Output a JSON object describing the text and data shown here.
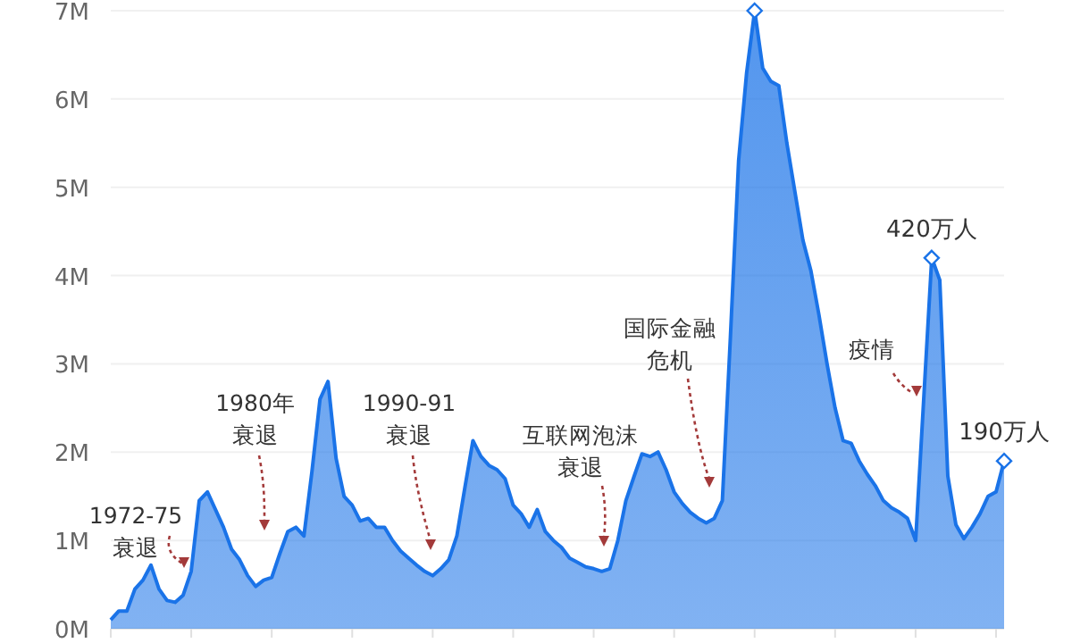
{
  "chart_data": {
    "type": "area",
    "categories": [
      null,
      null,
      null,
      null,
      null,
      null,
      null,
      null,
      null,
      null,
      null,
      null,
      null,
      null,
      null,
      null,
      null,
      null,
      null,
      null,
      null,
      null,
      null,
      null,
      null,
      null,
      null,
      null,
      null,
      null,
      null,
      null,
      null,
      null,
      null,
      null,
      null,
      null,
      null,
      null,
      null,
      null,
      null,
      null,
      null,
      null,
      null,
      null,
      null,
      null,
      null,
      null,
      null,
      null,
      null,
      null,
      null,
      null,
      null,
      null,
      null,
      null,
      null,
      null,
      null,
      null,
      null,
      null,
      null,
      null,
      null,
      null,
      null,
      null,
      null,
      null,
      null,
      null,
      null,
      null,
      null,
      null,
      null,
      null,
      null,
      null,
      null,
      null,
      null,
      null,
      null,
      null,
      null,
      null,
      null,
      null,
      null,
      null,
      null,
      null,
      null,
      null,
      null,
      null,
      null,
      null,
      null,
      null,
      null,
      null,
      null,
      null
    ],
    "series": [
      {
        "type": "area",
        "color": "#1a73e8",
        "values": [
          0.1,
          0.2,
          0.2,
          0.45,
          0.55,
          0.72,
          0.45,
          0.32,
          0.3,
          0.38,
          0.65,
          1.45,
          1.55,
          1.35,
          1.15,
          0.9,
          0.78,
          0.6,
          0.48,
          0.55,
          0.58,
          0.85,
          1.1,
          1.15,
          1.05,
          1.78,
          2.6,
          2.8,
          1.93,
          1.5,
          1.4,
          1.22,
          1.25,
          1.15,
          1.15,
          1.0,
          0.88,
          0.8,
          0.72,
          0.65,
          0.6,
          0.68,
          0.78,
          1.05,
          1.6,
          2.13,
          1.95,
          1.85,
          1.8,
          1.7,
          1.4,
          1.3,
          1.15,
          1.35,
          1.1,
          1.0,
          0.92,
          0.8,
          0.75,
          0.7,
          0.68,
          0.65,
          0.68,
          1.0,
          1.45,
          1.72,
          1.98,
          1.95,
          2.0,
          1.8,
          1.55,
          1.42,
          1.32,
          1.25,
          1.2,
          1.25,
          1.45,
          3.3,
          5.3,
          6.3,
          7.0,
          6.35,
          6.2,
          6.15,
          5.5,
          4.95,
          4.4,
          4.05,
          3.55,
          3.0,
          2.5,
          2.13,
          2.1,
          1.9,
          1.75,
          1.62,
          1.45,
          1.37,
          1.32,
          1.25,
          1.0,
          2.6,
          4.2,
          3.95,
          1.73,
          1.18,
          1.02,
          1.15,
          1.3,
          1.5,
          1.55,
          1.9
        ]
      },
      {
        "type": "scatter",
        "marker": "diamond",
        "color": "#1a73e8",
        "values": [
          null,
          null,
          null,
          null,
          null,
          null,
          null,
          null,
          null,
          null,
          null,
          null,
          null,
          null,
          null,
          null,
          null,
          null,
          null,
          null,
          null,
          null,
          null,
          null,
          null,
          null,
          null,
          null,
          null,
          null,
          null,
          null,
          null,
          null,
          null,
          null,
          null,
          null,
          null,
          null,
          null,
          null,
          null,
          null,
          null,
          null,
          null,
          null,
          null,
          null,
          null,
          null,
          null,
          null,
          null,
          null,
          null,
          null,
          null,
          null,
          null,
          null,
          null,
          null,
          null,
          null,
          null,
          null,
          null,
          null,
          null,
          null,
          null,
          null,
          null,
          null,
          null,
          null,
          null,
          null,
          7.0,
          null,
          null,
          null,
          null,
          null,
          null,
          null,
          null,
          null,
          null,
          null,
          null,
          null,
          null,
          null,
          null,
          null,
          null,
          null,
          null,
          null,
          4.2,
          null,
          null,
          null,
          null,
          null,
          null,
          null,
          null,
          1.9
        ]
      }
    ],
    "ylim": [
      0,
      7
    ],
    "yticks": [
      {
        "value": 0,
        "label": "0M"
      },
      {
        "value": 1,
        "label": "1M"
      },
      {
        "value": 2,
        "label": "2M"
      },
      {
        "value": 3,
        "label": "3M"
      },
      {
        "value": 4,
        "label": "4M"
      },
      {
        "value": 5,
        "label": "5M"
      },
      {
        "value": 6,
        "label": "6M"
      },
      {
        "value": 7,
        "label": "7M"
      }
    ],
    "grid": "y",
    "annotations": [
      "1972-75衰退",
      "1980年衰退",
      "1990-91衰退",
      "互联网泡沫衰退",
      "国际金融危机",
      "疫情",
      {
        "text": "420万人",
        "y": 4.2
      },
      {
        "text": "190万人",
        "y": 1.9
      }
    ]
  }
}
